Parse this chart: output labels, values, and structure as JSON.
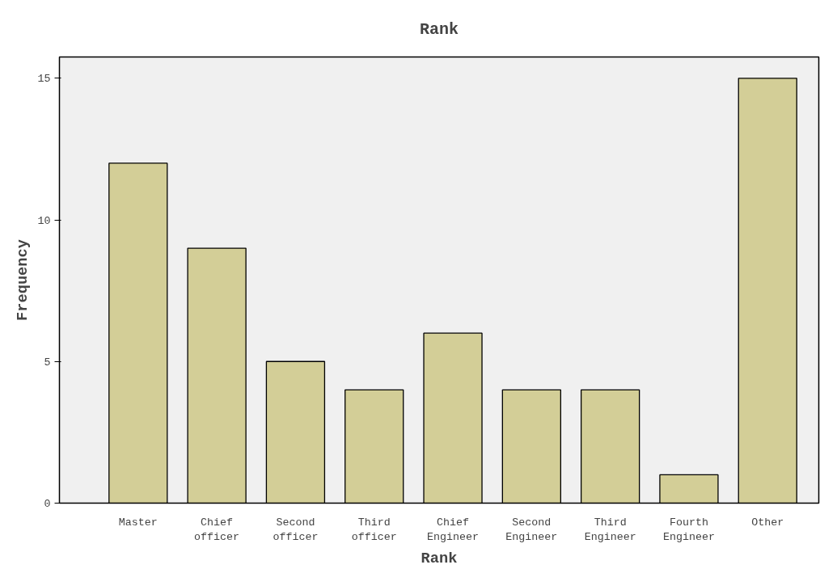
{
  "chart_data": {
    "type": "bar",
    "title": "Rank",
    "xlabel": "Rank",
    "ylabel": "Frequency",
    "categories": [
      "Master",
      "Chief officer",
      "Second officer",
      "Third officer",
      "Chief Engineer",
      "Second Engineer",
      "Third Engineer",
      "Fourth Engineer",
      "Other"
    ],
    "values": [
      12,
      9,
      5,
      4,
      6,
      4,
      4,
      1,
      15
    ],
    "color": "#d3ce97",
    "ylim": [
      0,
      15.75
    ],
    "yticks": [
      0,
      5,
      10,
      15
    ],
    "grid": false
  }
}
